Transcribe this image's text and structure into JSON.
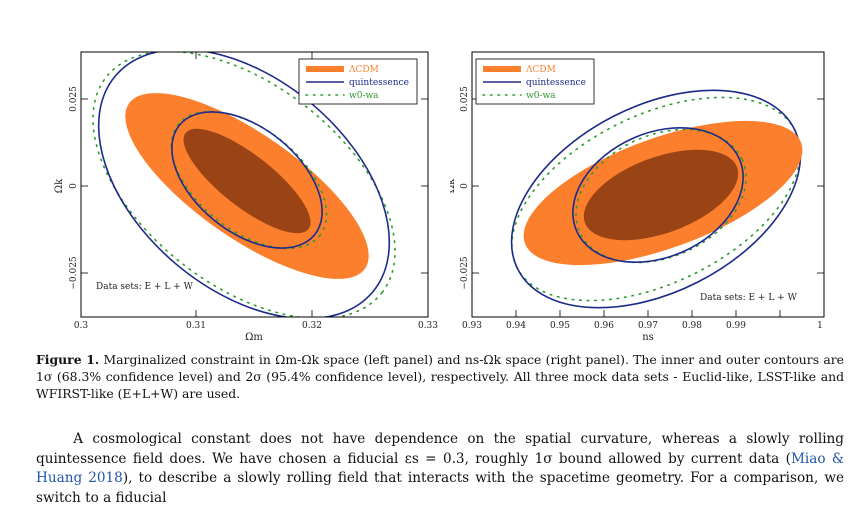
{
  "figure": {
    "panels": [
      {
        "id": "left",
        "xlabel": "Ωm",
        "ylabel": "Ωk",
        "xticks": [
          "0.3",
          "0.31",
          "0.32",
          "0.33"
        ],
        "yticks": [
          "0.025",
          "0",
          "−0.025"
        ],
        "dataset_note": "Data sets: E + L + W",
        "legend": [
          "ΛCDM",
          "quintessence",
          "w0-wa"
        ]
      },
      {
        "id": "right",
        "xlabel": "ns",
        "ylabel": "Ωk",
        "xticks": [
          "0.93",
          "0.94",
          "0.95",
          "0.96",
          "0.97",
          "0.98",
          "0.99",
          "1"
        ],
        "yticks": [
          "0.025",
          "0",
          "−0.025"
        ],
        "dataset_note": "Data sets: E + L + W",
        "legend": [
          "ΛCDM",
          "quintessence",
          "w0-wa"
        ]
      }
    ],
    "colors": {
      "lcdm_outer": "#fb7f2c",
      "lcdm_inner": "#9a4416",
      "quintessence": "#1c2a8a",
      "w0wa": "#2f9a2f"
    }
  },
  "caption": {
    "label": "Figure 1.",
    "text": "Marginalized constraint in Ωm-Ωk space (left panel) and ns-Ωk space (right panel). The inner and outer contours are 1σ (68.3% confidence level) and 2σ (95.4% confidence level), respectively. All three mock data sets - Euclid-like, LSST-like and WFIRST-like (E+L+W) are used."
  },
  "body": {
    "p1": "A cosmological constant does not have dependence on the spatial curvature, whereas a slowly rolling quintessence field does. We have chosen a fiducial εs = 0.3, roughly 1σ bound allowed by current data (",
    "cite": "Miao & Huang 2018",
    "p2": "), to describe a slowly rolling field that interacts with the spacetime geometry. For a comparison, we switch to a fiducial"
  }
}
